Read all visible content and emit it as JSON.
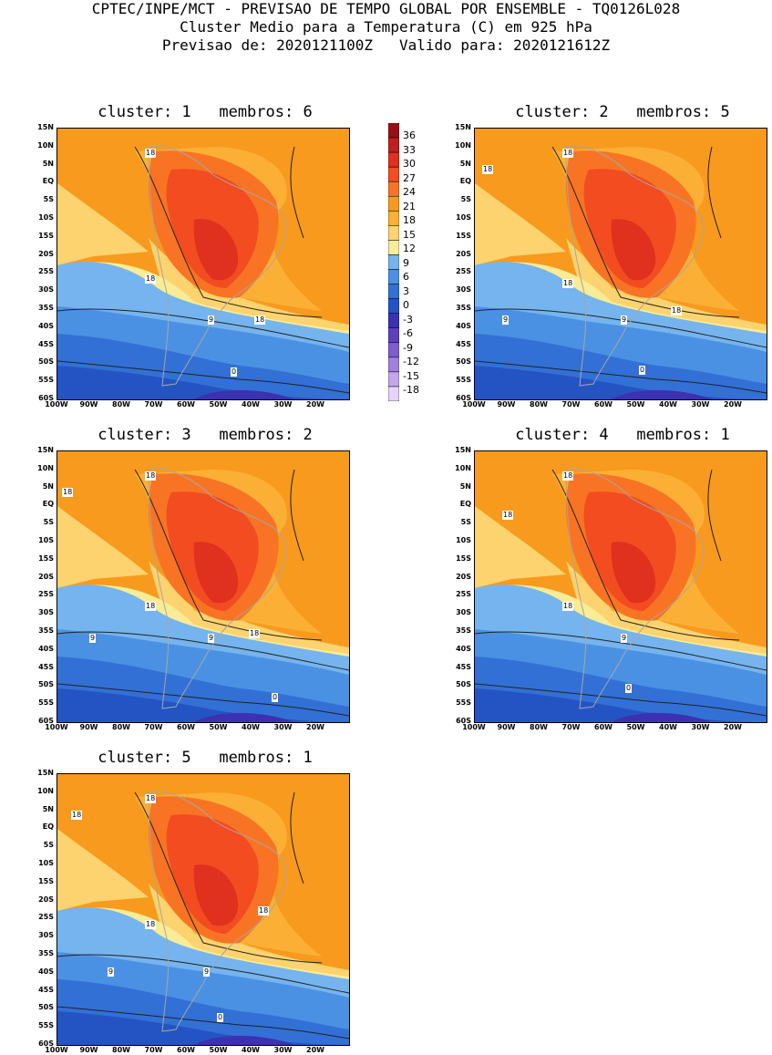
{
  "header": {
    "line1": "CPTEC/INPE/MCT - PREVISAO DE TEMPO GLOBAL POR ENSEMBLE - TQ0126L028",
    "line2": "Cluster Medio para a Temperatura (C) em 925 hPa",
    "line3": "Previsao de: 2020121100Z   Valido para: 2020121612Z"
  },
  "lat_labels": [
    "15N",
    "10N",
    "5N",
    "EQ",
    "5S",
    "10S",
    "15S",
    "20S",
    "25S",
    "30S",
    "35S",
    "40S",
    "45S",
    "50S",
    "55S",
    "60S"
  ],
  "lon_labels": [
    "100W",
    "90W",
    "80W",
    "70W",
    "60W",
    "50W",
    "40W",
    "30W",
    "20W"
  ],
  "colorbar": {
    "labels": [
      "36",
      "33",
      "30",
      "27",
      "24",
      "21",
      "18",
      "15",
      "12",
      "9",
      "6",
      "3",
      "0",
      "-3",
      "-6",
      "-9",
      "-12",
      "-15",
      "-18"
    ],
    "colors": [
      "#9b0f14",
      "#c21e1e",
      "#e0301e",
      "#f24c20",
      "#f87424",
      "#f89a1e",
      "#fbb035",
      "#fcd36e",
      "#f9ec97",
      "#75b4ee",
      "#4b91e3",
      "#3270d6",
      "#2454c4",
      "#3c31b3",
      "#5e3fbd",
      "#7f5cd0",
      "#a07fe0",
      "#c4a6ee",
      "#e6d3fa"
    ]
  },
  "panels": [
    {
      "title": "cluster: 1   membros: 6",
      "labels": [
        "18",
        "18",
        "18",
        "9",
        "0"
      ]
    },
    {
      "title": "cluster: 2   membros: 5",
      "labels": [
        "18",
        "18",
        "18",
        "18",
        "9",
        "9",
        "0"
      ]
    },
    {
      "title": "cluster: 3   membros: 2",
      "labels": [
        "18",
        "18",
        "18",
        "18",
        "9",
        "9",
        "0"
      ]
    },
    {
      "title": "cluster: 4   membros: 1",
      "labels": [
        "18",
        "18",
        "18",
        "9",
        "0"
      ]
    },
    {
      "title": "cluster: 5   membros: 1",
      "labels": [
        "18",
        "18",
        "18",
        "18",
        "9",
        "9",
        "0"
      ]
    }
  ]
}
